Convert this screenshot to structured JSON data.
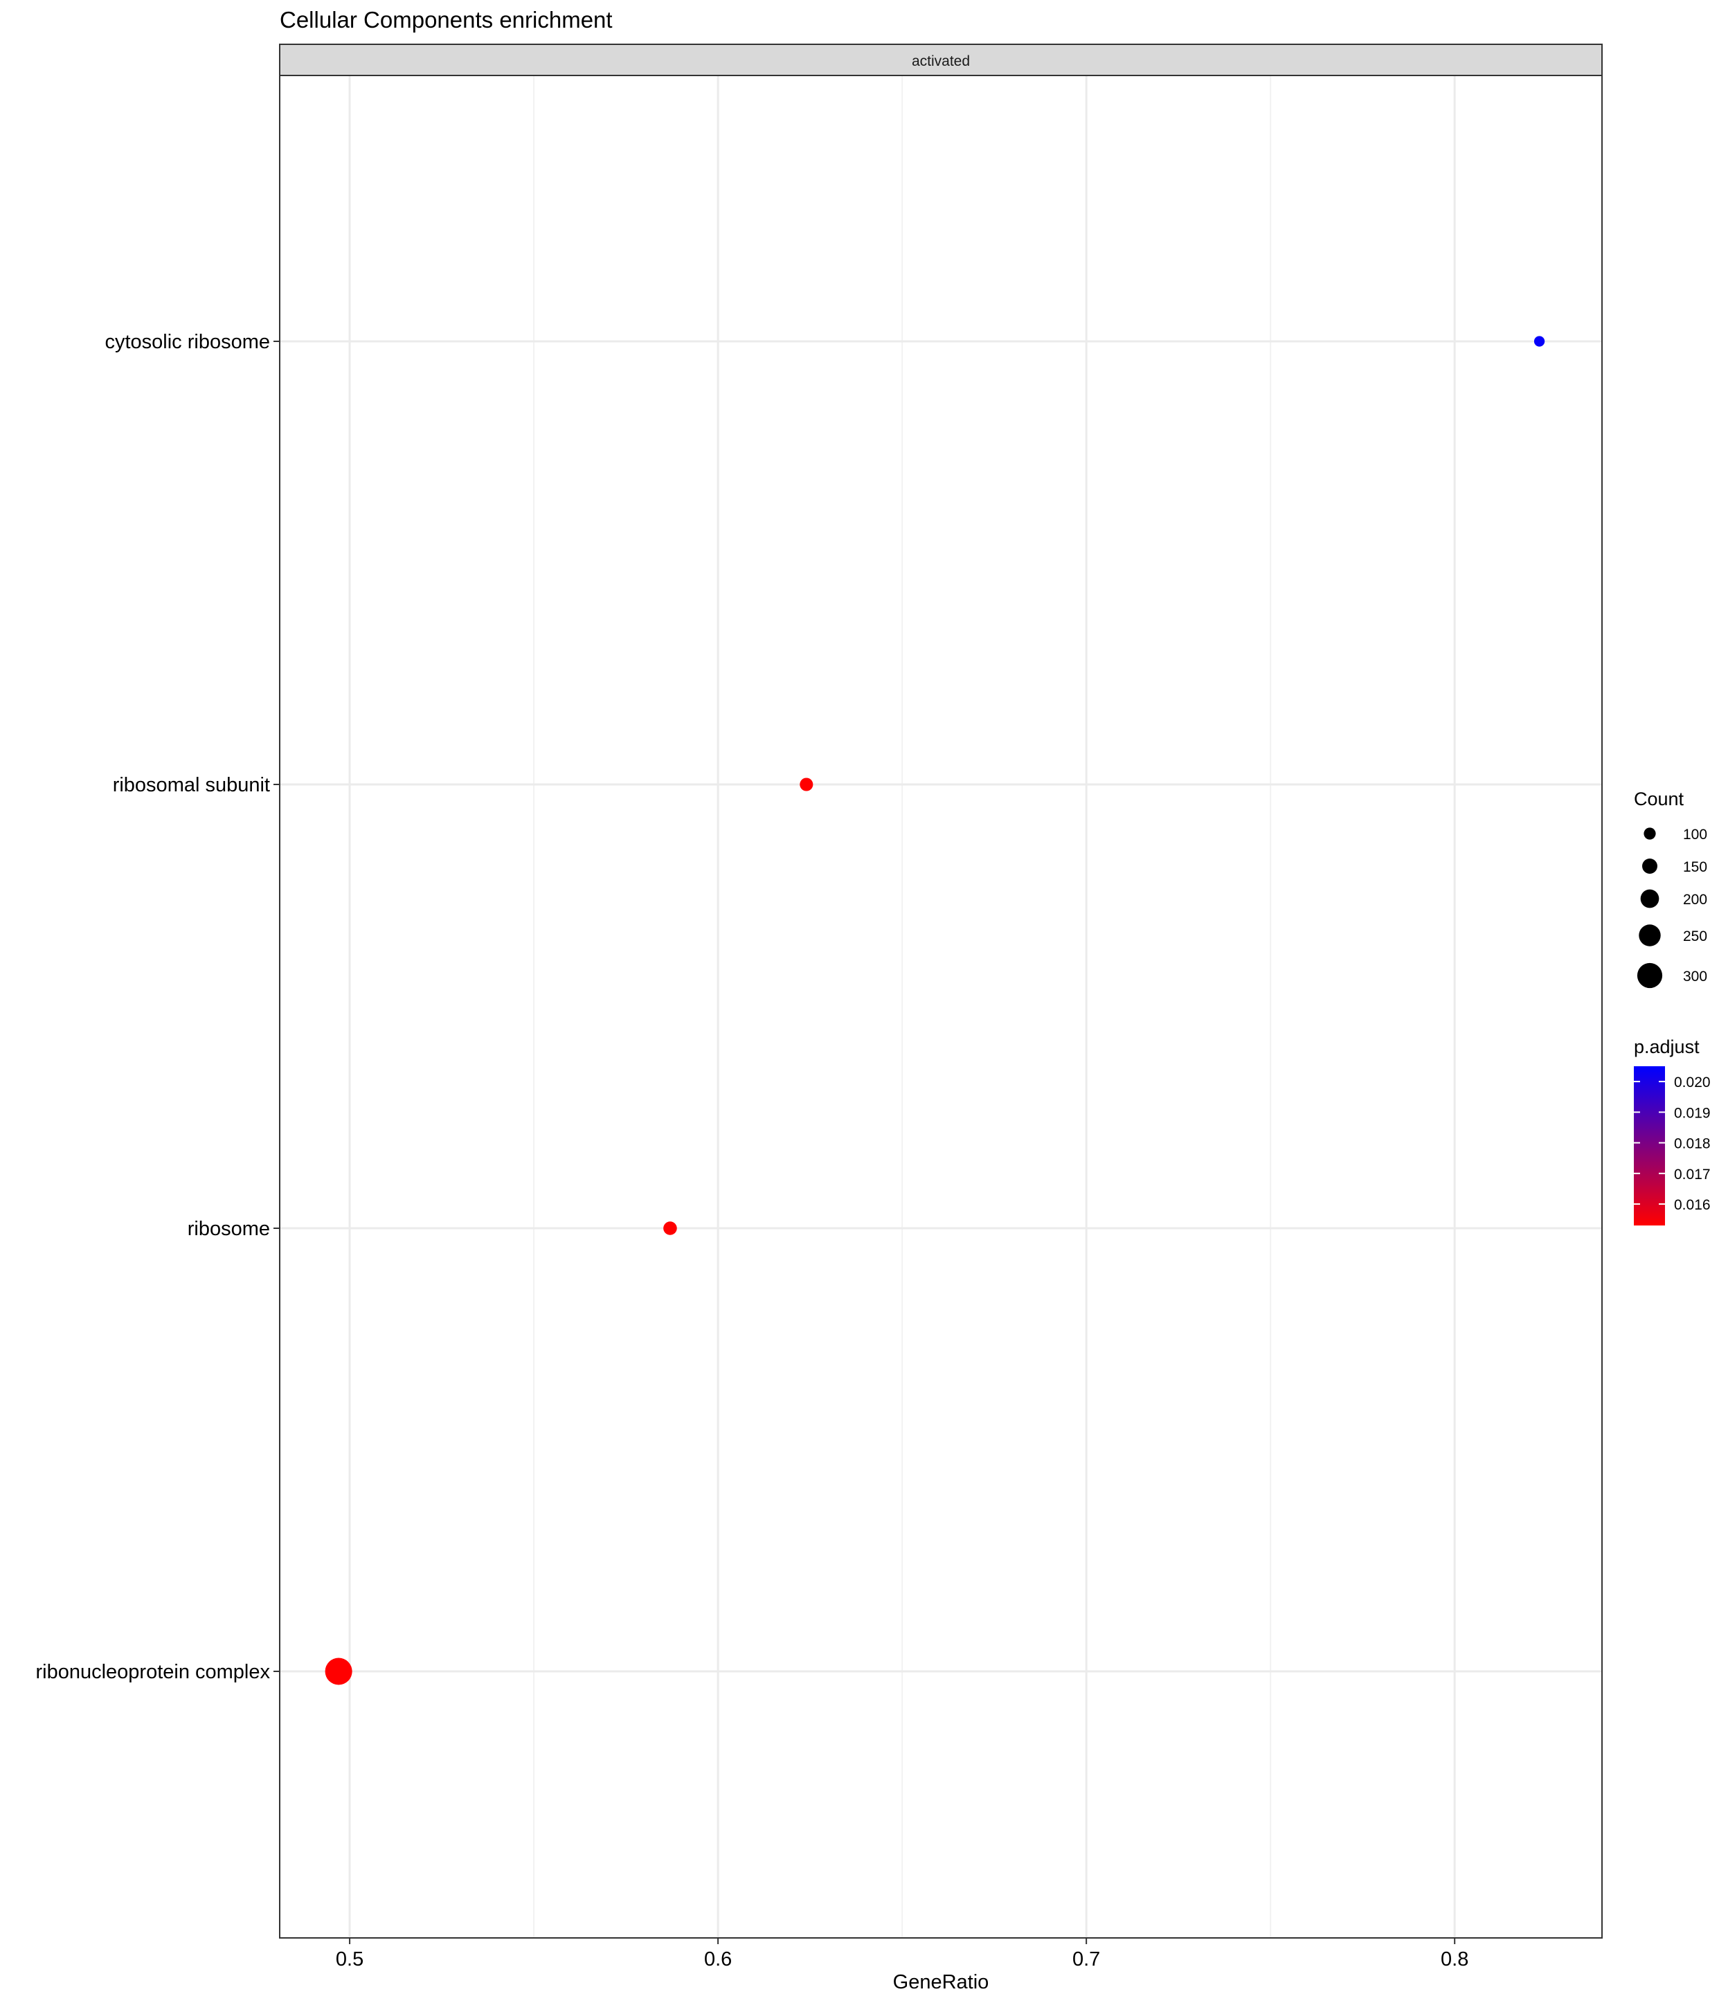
{
  "chart_data": {
    "type": "scatter",
    "title": "Cellular Components enrichment",
    "facet_label": "activated",
    "xlabel": "GeneRatio",
    "ylabel": "",
    "xlim": [
      0.481,
      0.84
    ],
    "x_ticks": [
      0.5,
      0.6,
      0.7,
      0.8
    ],
    "x_tick_labels": [
      "0.5",
      "0.6",
      "0.7",
      "0.8"
    ],
    "categories": [
      "cytosolic ribosome",
      "ribosomal subunit",
      "ribosome",
      "ribonucleoprotein complex"
    ],
    "points": [
      {
        "term": "cytosolic ribosome",
        "gene_ratio": 0.823,
        "count": 80,
        "p_adjust": 0.0204
      },
      {
        "term": "ribosomal subunit",
        "gene_ratio": 0.624,
        "count": 120,
        "p_adjust": 0.0153
      },
      {
        "term": "ribosome",
        "gene_ratio": 0.587,
        "count": 125,
        "p_adjust": 0.0153
      },
      {
        "term": "ribonucleoprotein complex",
        "gene_ratio": 0.497,
        "count": 330,
        "p_adjust": 0.0153
      }
    ],
    "grid": true,
    "legend_position": "right",
    "size_legend": {
      "title": "Count",
      "values": [
        100,
        150,
        200,
        250,
        300
      ],
      "labels": [
        "100",
        "150",
        "200",
        "250",
        "300"
      ]
    },
    "color_legend": {
      "title": "p.adjust",
      "ticks": [
        0.02,
        0.019,
        0.018,
        0.017,
        0.016
      ],
      "labels": [
        "0.020",
        "0.019",
        "0.018",
        "0.017",
        "0.016"
      ],
      "range": [
        0.0153,
        0.0205
      ],
      "low_color": "#ff0000",
      "high_color": "#0000ff"
    }
  }
}
